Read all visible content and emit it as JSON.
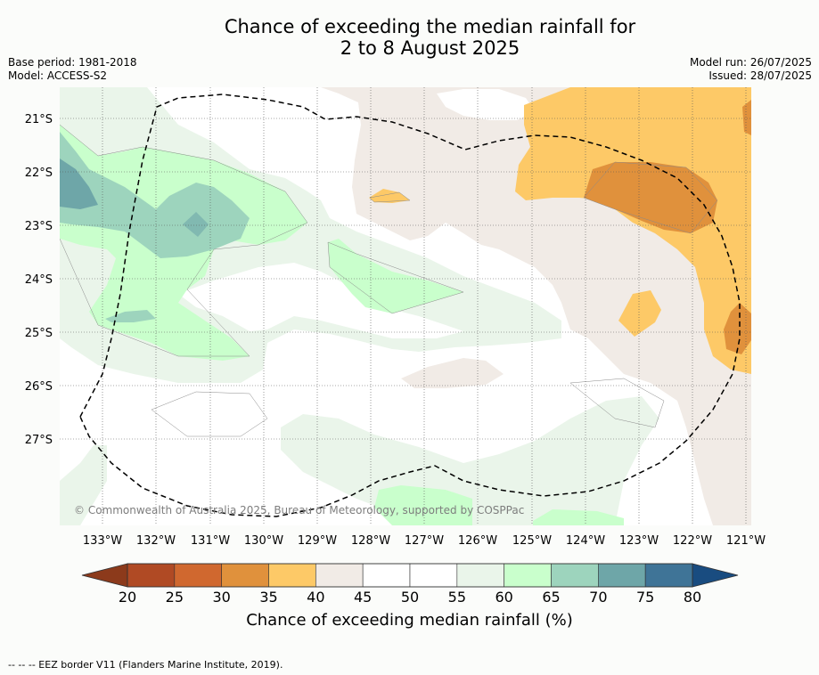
{
  "header": {
    "title_line1": "Chance of exceeding the median rainfall for",
    "title_line2": "2 to 8 August 2025",
    "base_period": "Base period: 1981-2018",
    "model": "Model: ACCESS-S2",
    "model_run": "Model run: 26/07/2025",
    "issued": "Issued: 28/07/2025"
  },
  "map": {
    "lat_labels": [
      "21°S",
      "22°S",
      "23°S",
      "24°S",
      "25°S",
      "26°S",
      "27°S"
    ],
    "lon_labels": [
      "133°W",
      "132°W",
      "131°W",
      "130°W",
      "129°W",
      "128°W",
      "127°W",
      "126°W",
      "125°W",
      "124°W",
      "123°W",
      "122°W",
      "121°W"
    ],
    "copyright": "© Commonwealth of Australia 2025, Bureau of Meteorology, supported by COSPPac",
    "eez_border_style": "dashed black",
    "grid": true
  },
  "colorbar": {
    "ticks": [
      "20",
      "25",
      "30",
      "35",
      "40",
      "45",
      "50",
      "55",
      "60",
      "65",
      "70",
      "75",
      "80"
    ],
    "colors": [
      "#b04a24",
      "#d0682f",
      "#e0913c",
      "#fdc967",
      "#f1ebe6",
      "#ffffff",
      "#ffffff",
      "#eaf5ea",
      "#c9ffcc",
      "#9dd4bd",
      "#6ea6a8",
      "#3f7497"
    ],
    "under_color": "#8c3a1b",
    "over_color": "#194c80",
    "title": "Chance of exceeding median rainfall (%)"
  },
  "footer": {
    "eez_note": "--  --  -- EEZ border V11 (Flanders Marine Institute, 2019)."
  }
}
